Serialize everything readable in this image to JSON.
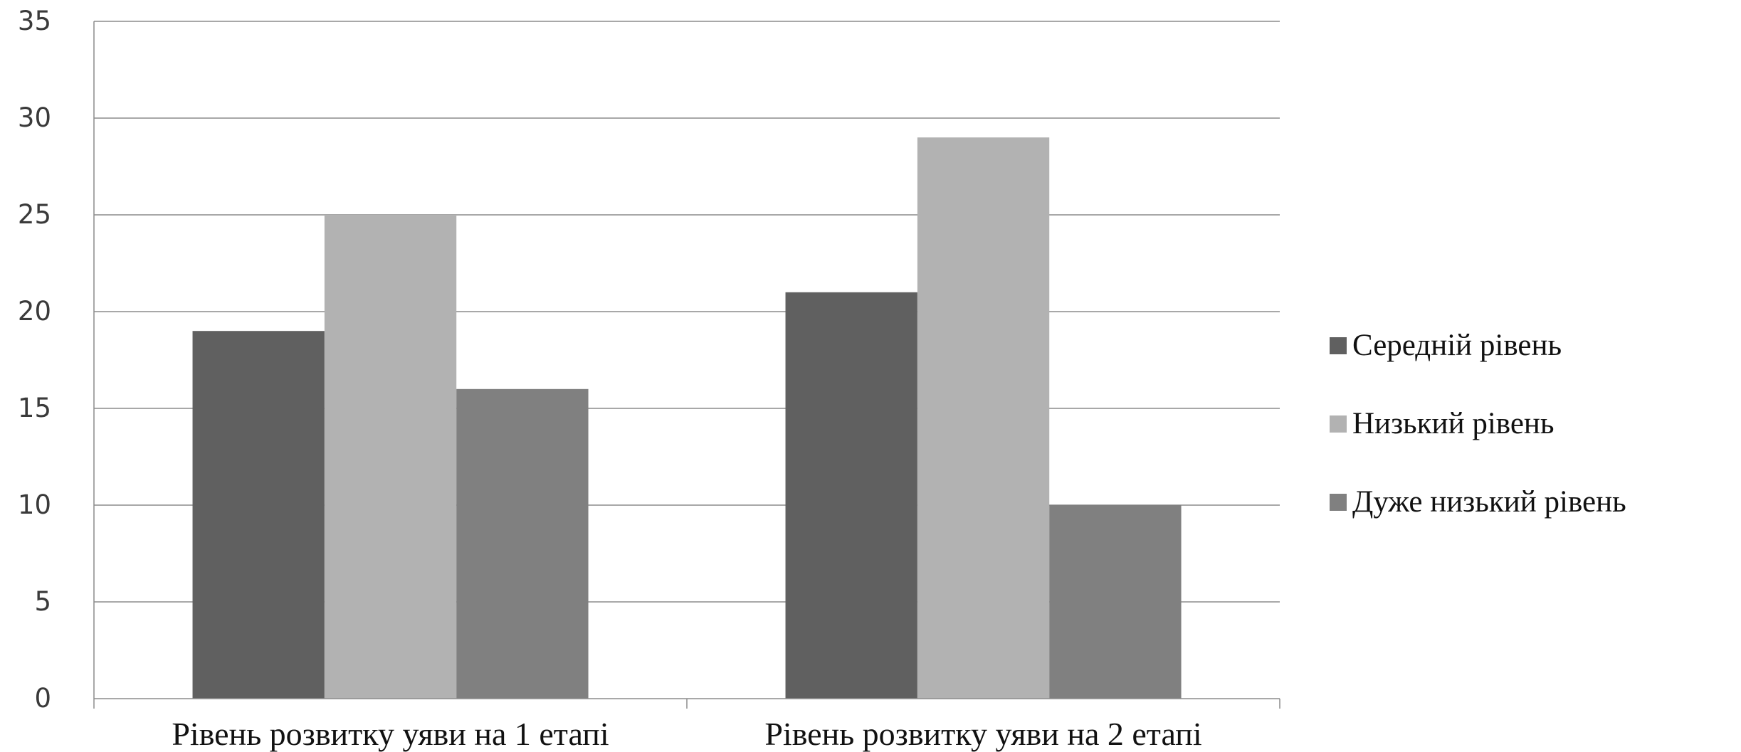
{
  "chart_data": {
    "type": "bar",
    "title": "",
    "xlabel": "",
    "ylabel": "",
    "ylim": [
      0,
      35
    ],
    "ytick_step": 5,
    "yticks": [
      "0",
      "5",
      "10",
      "15",
      "20",
      "25",
      "30",
      "35"
    ],
    "grid": true,
    "legend_position": "right",
    "categories": [
      "Рівень розвитку уяви на 1 етапі",
      "Рівень розвитку уяви на 2 етапі"
    ],
    "series": [
      {
        "name": "Середній рівень",
        "values": [
          19,
          21
        ],
        "color": "#606060"
      },
      {
        "name": "Низький рівень",
        "values": [
          25,
          29
        ],
        "color": "#b2b2b2"
      },
      {
        "name": "Дуже низький рівень",
        "values": [
          16,
          10
        ],
        "color": "#808080"
      }
    ]
  }
}
